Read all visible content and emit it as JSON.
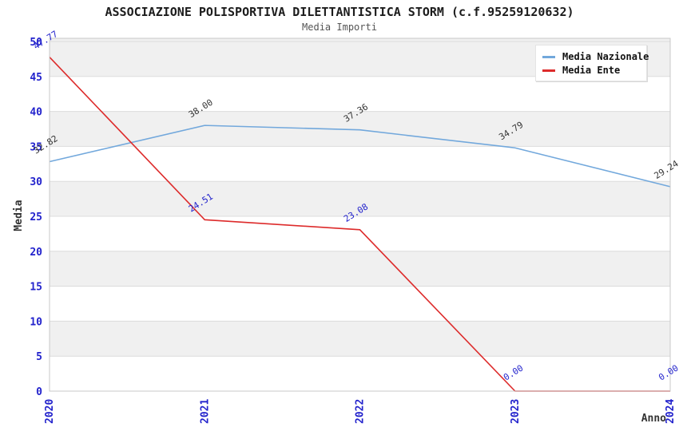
{
  "header": {
    "title": "ASSOCIAZIONE POLISPORTIVA DILETTANTISTICA STORM (c.f.95259120632)",
    "subtitle": "Media Importi"
  },
  "chart_data": {
    "type": "line",
    "title": "ASSOCIAZIONE POLISPORTIVA DILETTANTISTICA STORM (c.f.95259120632)",
    "subtitle": "Media Importi",
    "categories": [
      "2020",
      "2021",
      "2022",
      "2023",
      "2024"
    ],
    "series": [
      {
        "name": "Media Nazionale",
        "color": "#72a8dc",
        "label_color": "#333333",
        "values": [
          32.82,
          38.0,
          37.36,
          34.79,
          29.24
        ]
      },
      {
        "name": "Media Ente",
        "color": "#dd2b2b",
        "label_color": "#2222cc",
        "values": [
          47.77,
          24.51,
          23.08,
          0.0,
          0.0
        ]
      }
    ],
    "xlabel": "Anno",
    "ylabel": "Media",
    "ylim": [
      0,
      50
    ],
    "ytick_step": 5,
    "grid": true,
    "legend_position": "top-right",
    "tick_color": "#2222cc",
    "band_color": "#f0f0f0",
    "grid_color": "#dcdcdc",
    "border_color": "#c8c8c8"
  }
}
